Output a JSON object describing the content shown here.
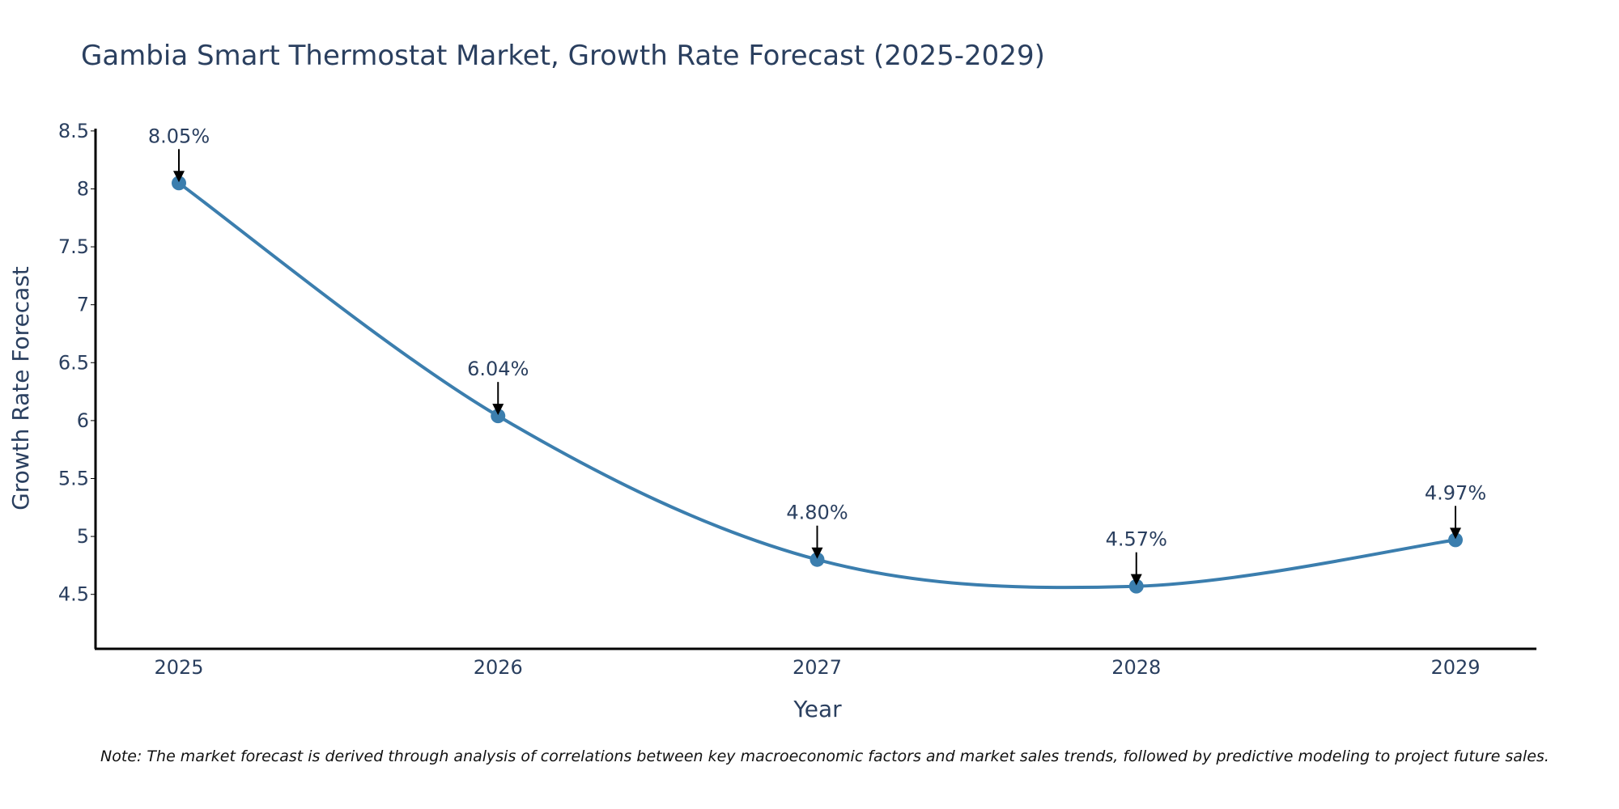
{
  "colors": {
    "line": "#3b7eae",
    "marker": "#3b7eae",
    "axis": "#000000",
    "arrow": "#000000",
    "text": "#2a3f5f"
  },
  "chart_data": {
    "type": "line",
    "title": "Gambia Smart Thermostat Market, Growth Rate Forecast (2025-2029)",
    "xlabel": "Year",
    "ylabel": "Growth Rate Forecast",
    "categories": [
      "2025",
      "2026",
      "2027",
      "2028",
      "2029"
    ],
    "values": [
      8.05,
      6.04,
      4.8,
      4.57,
      4.97
    ],
    "data_labels": [
      "8.05%",
      "6.04%",
      "4.80%",
      "4.57%",
      "4.97%"
    ],
    "ylim": [
      4.03,
      8.52
    ],
    "yticks": [
      4.5,
      5,
      5.5,
      6,
      6.5,
      7,
      7.5,
      8,
      8.5
    ],
    "ytick_labels": [
      "4.5",
      "5",
      "5.5",
      "6",
      "6.5",
      "7",
      "7.5",
      "8",
      "8.5"
    ],
    "grid": false,
    "line_shape": "spline"
  },
  "note": "Note: The market forecast is derived through analysis of correlations between key macroeconomic factors and market sales trends, followed by predictive modeling to project future sales."
}
